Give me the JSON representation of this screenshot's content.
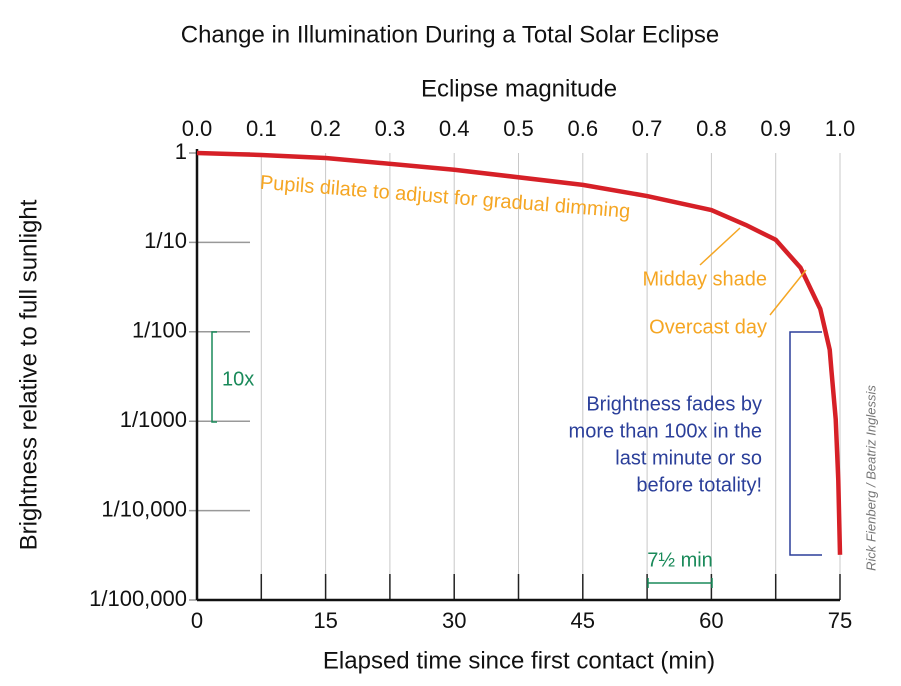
{
  "chart_data": {
    "type": "line",
    "title": "Change in Illumination During a Total Solar Eclipse",
    "x_label": "Elapsed time since first contact (min)",
    "x2_label": "Eclipse magnitude",
    "y_label": "Brightness relative to full sunlight",
    "log_y": true,
    "xlim": [
      0,
      75
    ],
    "xticks": [
      0,
      15,
      30,
      45,
      60,
      75
    ],
    "xgrid": [
      0,
      7.5,
      15,
      22.5,
      30,
      37.5,
      45,
      52.5,
      60,
      67.5,
      75
    ],
    "x2lim": [
      0,
      1
    ],
    "x2ticks": [
      {
        "value": 0,
        "label": "0.0"
      },
      0.1,
      0.2,
      0.3,
      0.4,
      0.5,
      0.6,
      0.7,
      0.8,
      0.9,
      {
        "value": 1,
        "label": "1.0"
      }
    ],
    "ylim": [
      1e-05,
      1
    ],
    "yticks": [
      1,
      {
        "value": 0.1,
        "label": "1/10"
      },
      {
        "value": 0.01,
        "label": "1/100"
      },
      {
        "value": 0.001,
        "label": "1/1000"
      },
      {
        "value": 0.0001,
        "label": "1/10,000"
      },
      {
        "value": 1e-05,
        "label": "1/100,000"
      }
    ],
    "grid": true,
    "series": [
      {
        "name": "Brightness",
        "color": "#d62027",
        "x": [
          0,
          7.5,
          15,
          30,
          45,
          52.5,
          60,
          64,
          67.5,
          70.4,
          72.7,
          73.8,
          74,
          74.5,
          74.8,
          75
        ],
        "values": [
          1,
          0.95,
          0.88,
          0.65,
          0.44,
          0.33,
          0.23,
          0.157,
          0.107,
          0.052,
          0.018,
          0.0063,
          0.0037,
          0.00105,
          0.00022,
          3.2e-05
        ]
      }
    ],
    "annotations": [
      {
        "text": "Pupils dilate to adjust for gradual dimming",
        "color": "#f5a623"
      },
      {
        "text": "Midday shade",
        "color": "#f5a623"
      },
      {
        "text": "Overcast day",
        "color": "#f5a623"
      },
      {
        "text": "10x",
        "color": "#1a8a5a"
      },
      {
        "text": "7½ min",
        "color": "#1a8a5a"
      },
      {
        "lines": [
          "Brightness fades by",
          "more than 100x in the",
          "last minute or so",
          "before totality!"
        ],
        "color": "#2b3f9a"
      }
    ],
    "credit": "Rick Fienberg / Beatriz Inglessis"
  }
}
